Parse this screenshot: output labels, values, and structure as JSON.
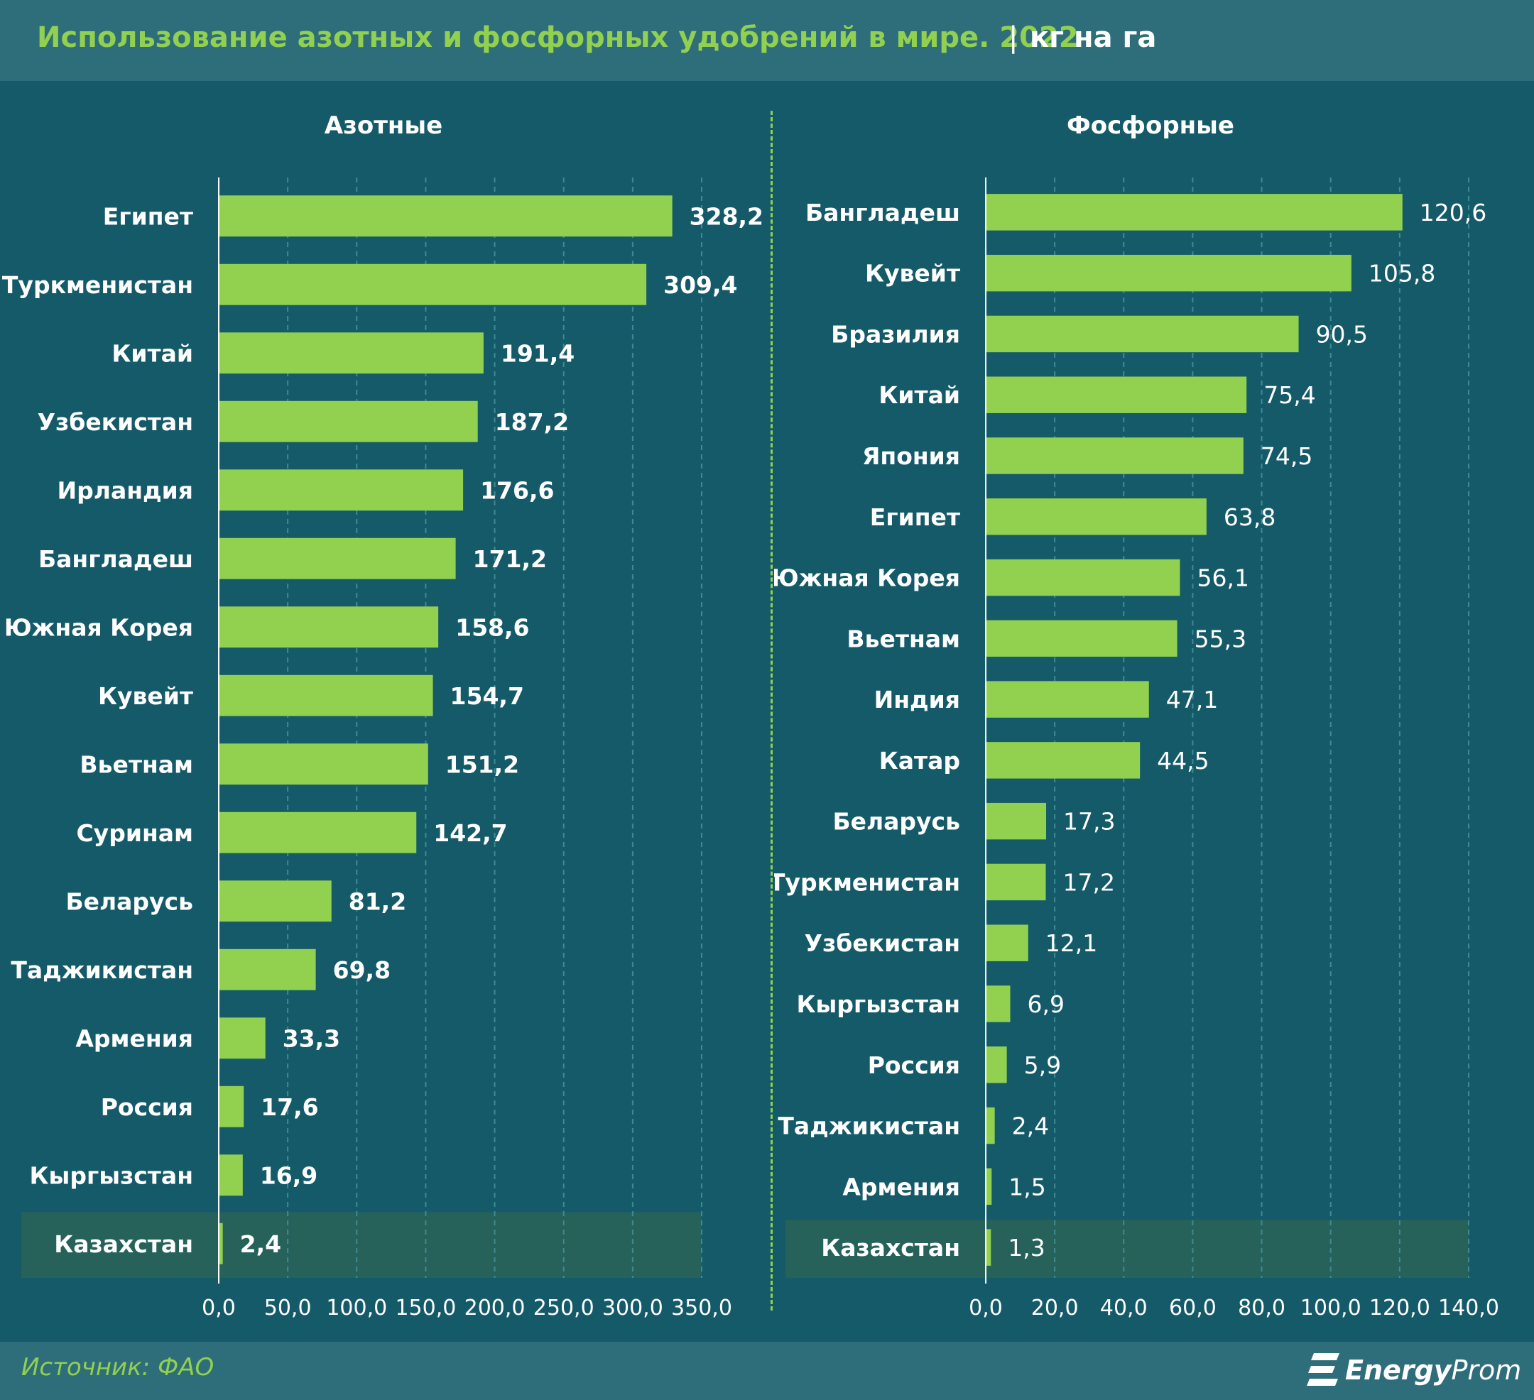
{
  "header": {
    "title": "Использование азотных и фосфорных удобрений в мире. 2022",
    "separator": "|",
    "unit": "кг на га"
  },
  "footer": {
    "source": "Источник: ФАО",
    "logo_bold": "Energy",
    "logo_light": "Prom"
  },
  "colors": {
    "background": "#155a68",
    "header_bg": "#2e6e7a",
    "bar": "#92d050",
    "title_accent": "#92d050",
    "highlight_row": "#26625a",
    "grid": "#3e8a96"
  },
  "chart_data": [
    {
      "type": "bar",
      "orientation": "horizontal",
      "title": "Азотные",
      "categories": [
        "Египет",
        "Туркменистан",
        "Китай",
        "Узбекистан",
        "Ирландия",
        "Бангладеш",
        "Южная Корея",
        "Кувейт",
        "Вьетнам",
        "Суринам",
        "Беларусь",
        "Таджикистан",
        "Армения",
        "Россия",
        "Кыргызстан",
        "Казахстан"
      ],
      "values": [
        328.2,
        309.4,
        191.4,
        187.2,
        176.6,
        171.2,
        158.6,
        154.7,
        151.2,
        142.7,
        81.2,
        69.8,
        33.3,
        17.6,
        16.9,
        2.4
      ],
      "value_labels": [
        "328,2",
        "309,4",
        "191,4",
        "187,2",
        "176,6",
        "171,2",
        "158,6",
        "154,7",
        "151,2",
        "142,7",
        "81,2",
        "69,8",
        "33,3",
        "17,6",
        "16,9",
        "2,4"
      ],
      "highlight": "Казахстан",
      "xlim": [
        0,
        350
      ],
      "ticks": [
        "0,0",
        "50,0",
        "100,0",
        "150,0",
        "200,0",
        "250,0",
        "300,0",
        "350,0"
      ],
      "grid": "vertical dashed"
    },
    {
      "type": "bar",
      "orientation": "horizontal",
      "title": "Фосфорные",
      "categories": [
        "Бангладеш",
        "Кувейт",
        "Бразилия",
        "Китай",
        "Япония",
        "Египет",
        "Южная Корея",
        "Вьетнам",
        "Индия",
        "Катар",
        "Беларусь",
        "Туркменистан",
        "Узбекистан",
        "Кыргызстан",
        "Россия",
        "Таджикистан",
        "Армения",
        "Казахстан"
      ],
      "values": [
        120.6,
        105.8,
        90.5,
        75.4,
        74.5,
        63.8,
        56.1,
        55.3,
        47.1,
        44.5,
        17.3,
        17.2,
        12.1,
        6.9,
        5.9,
        2.4,
        1.5,
        1.3
      ],
      "value_labels": [
        "120,6",
        "105,8",
        "90,5",
        "75,4",
        "74,5",
        "63,8",
        "56,1",
        "55,3",
        "47,1",
        "44,5",
        "17,3",
        "17,2",
        "12,1",
        "6,9",
        "5,9",
        "2,4",
        "1,5",
        "1,3"
      ],
      "highlight": "Казахстан",
      "xlim": [
        0,
        140
      ],
      "ticks": [
        "0,0",
        "20,0",
        "40,0",
        "60,0",
        "80,0",
        "100,0",
        "120,0",
        "140,0"
      ],
      "grid": "vertical dashed"
    }
  ]
}
